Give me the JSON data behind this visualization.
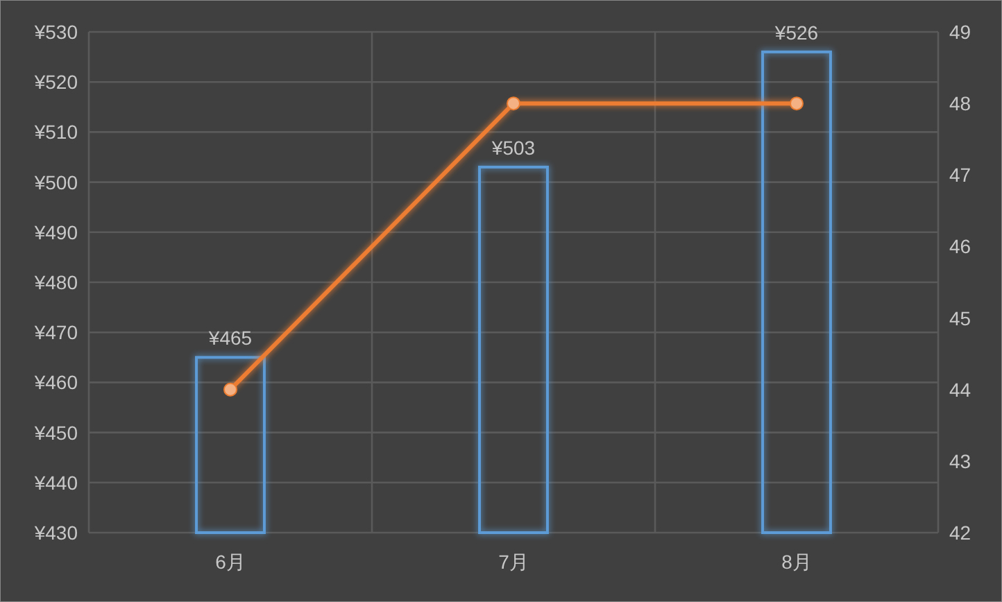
{
  "chart_data": {
    "type": "bar",
    "categories": [
      "6月",
      "7月",
      "8月"
    ],
    "series": [
      {
        "color": "#5b9bd5",
        "values": [
          465,
          503,
          526
        ],
        "value_labels": [
          "¥465",
          "¥503",
          "¥526"
        ]
      },
      {
        "type": "line",
        "axis": "y2",
        "color": "#ed7d31",
        "values": [
          44,
          48,
          48
        ],
        "marker": "circle"
      }
    ],
    "ylim": [
      430,
      530
    ],
    "yticks": [
      {
        "value": 430,
        "label": "¥430"
      },
      {
        "value": 440,
        "label": "¥440"
      },
      {
        "value": 450,
        "label": "¥450"
      },
      {
        "value": 460,
        "label": "¥460"
      },
      {
        "value": 470,
        "label": "¥470"
      },
      {
        "value": 480,
        "label": "¥480"
      },
      {
        "value": 490,
        "label": "¥490"
      },
      {
        "value": 500,
        "label": "¥500"
      },
      {
        "value": 510,
        "label": "¥510"
      },
      {
        "value": 520,
        "label": "¥520"
      },
      {
        "value": 530,
        "label": "¥530"
      }
    ],
    "y2lim": [
      42,
      49
    ],
    "y2ticks": [
      42,
      43,
      44,
      45,
      46,
      47,
      48,
      49
    ],
    "grid": true
  }
}
